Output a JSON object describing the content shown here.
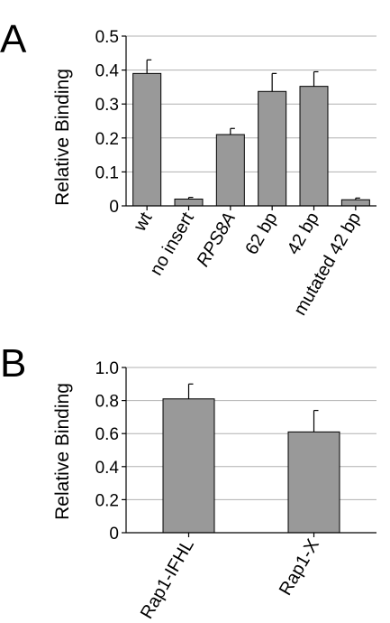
{
  "chart_data": [
    {
      "panel": "A",
      "type": "bar",
      "ylabel": "Relative Binding",
      "ylim": [
        0,
        0.5
      ],
      "yticks": [
        "0",
        "0.1",
        "0.2",
        "0.3",
        "0.4",
        "0.5"
      ],
      "grid": true,
      "categories": [
        "wt",
        "no insert",
        "RPS8A",
        "62 bp",
        "42 bp",
        "mutated 42 bp"
      ],
      "italic_categories": [
        "RPS8A"
      ],
      "values": [
        0.39,
        0.02,
        0.21,
        0.337,
        0.352,
        0.018
      ],
      "errors": [
        0.04,
        0.005,
        0.018,
        0.053,
        0.043,
        0.005
      ],
      "bar_color": "#999999"
    },
    {
      "panel": "B",
      "type": "bar",
      "ylabel": "Relative Binding",
      "ylim": [
        0,
        1.0
      ],
      "yticks": [
        "0",
        "0.2",
        "0.4",
        "0.6",
        "0.8",
        "1.0"
      ],
      "grid": true,
      "categories": [
        "Rap1-IFHL",
        "Rap1-X"
      ],
      "italic_categories": [],
      "values": [
        0.81,
        0.61
      ],
      "errors": [
        0.09,
        0.13
      ],
      "bar_color": "#999999"
    }
  ]
}
